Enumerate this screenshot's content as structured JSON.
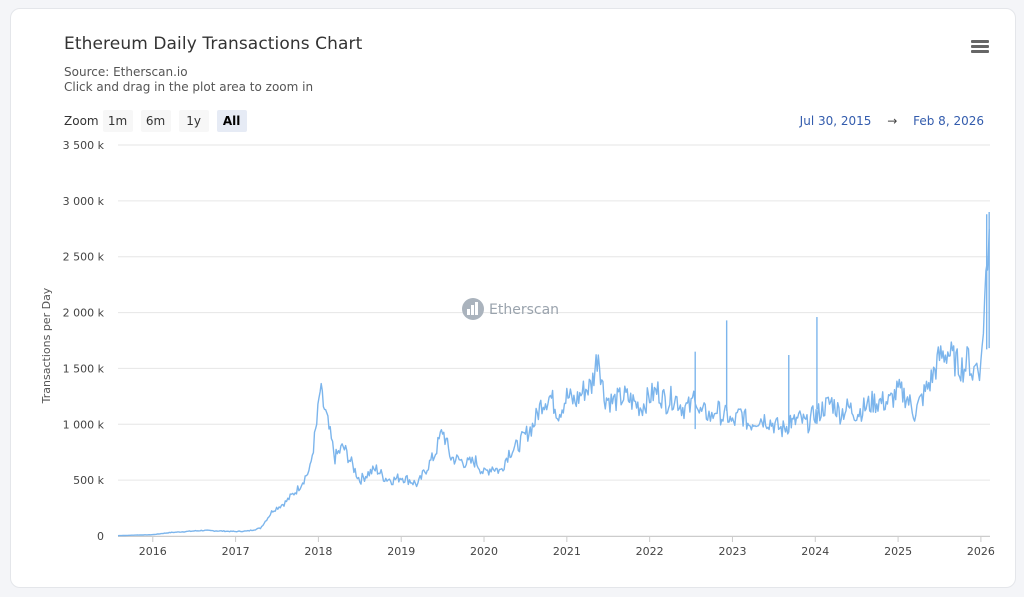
{
  "header": {
    "title": "Ethereum Daily Transactions Chart",
    "source": "Source: Etherscan.io",
    "hint": "Click and drag in the plot area to zoom in"
  },
  "zoom": {
    "label": "Zoom",
    "buttons": [
      "1m",
      "6m",
      "1y",
      "All"
    ],
    "active": "All"
  },
  "range": {
    "from": "Jul 30, 2015",
    "arrow": "→",
    "to": "Feb 8, 2026"
  },
  "watermark": "Etherscan",
  "colors": {
    "line": "#7cb5ec",
    "grid": "#e6e6e6",
    "range_text": "#335cad"
  },
  "chart_data": {
    "type": "line",
    "title": "Ethereum Daily Transactions Chart",
    "ylabel": "Transactions per Day",
    "xlabel": "",
    "ylim": [
      0,
      3500000
    ],
    "xlim": [
      2015.58,
      2026.11
    ],
    "y_ticks": [
      0,
      500000,
      1000000,
      1500000,
      2000000,
      2500000,
      3000000,
      3500000
    ],
    "y_tick_labels": [
      "0",
      "500 k",
      "1 000 k",
      "1 500 k",
      "2 000 k",
      "2 500 k",
      "3 000 k",
      "3 500 k"
    ],
    "x_ticks": [
      2016,
      2017,
      2018,
      2019,
      2020,
      2021,
      2022,
      2023,
      2024,
      2025,
      2026
    ],
    "x_tick_labels": [
      "2016",
      "2017",
      "2018",
      "2019",
      "2020",
      "2021",
      "2022",
      "2023",
      "2024",
      "2025",
      "2026"
    ],
    "series": [
      {
        "name": "Transactions per Day",
        "x": [
          2015.58,
          2015.8,
          2016.0,
          2016.2,
          2016.4,
          2016.6,
          2016.8,
          2017.0,
          2017.15,
          2017.3,
          2017.45,
          2017.6,
          2017.75,
          2017.9,
          2017.98,
          2018.02,
          2018.1,
          2018.2,
          2018.3,
          2018.4,
          2018.5,
          2018.6,
          2018.7,
          2018.8,
          2018.9,
          2019.0,
          2019.1,
          2019.2,
          2019.3,
          2019.4,
          2019.5,
          2019.6,
          2019.7,
          2019.8,
          2019.9,
          2020.0,
          2020.1,
          2020.2,
          2020.3,
          2020.4,
          2020.5,
          2020.6,
          2020.7,
          2020.8,
          2020.9,
          2021.0,
          2021.1,
          2021.2,
          2021.3,
          2021.38,
          2021.45,
          2021.55,
          2021.7,
          2021.8,
          2021.9,
          2022.0,
          2022.1,
          2022.2,
          2022.3,
          2022.4,
          2022.5,
          2022.55,
          2022.6,
          2022.7,
          2022.75,
          2022.8,
          2022.9,
          2022.93,
          2022.96,
          2023.0,
          2023.1,
          2023.2,
          2023.3,
          2023.4,
          2023.5,
          2023.6,
          2023.68,
          2023.7,
          2023.72,
          2023.8,
          2023.9,
          2024.0,
          2024.02,
          2024.04,
          2024.1,
          2024.2,
          2024.3,
          2024.4,
          2024.5,
          2024.6,
          2024.7,
          2024.8,
          2024.9,
          2025.0,
          2025.1,
          2025.2,
          2025.3,
          2025.4,
          2025.5,
          2025.6,
          2025.7,
          2025.8,
          2025.85,
          2025.9,
          2025.95,
          2026.0,
          2026.03,
          2026.06,
          2026.08,
          2026.1
        ],
        "values": [
          3000,
          8000,
          12000,
          30000,
          40000,
          50000,
          45000,
          40000,
          45000,
          70000,
          230000,
          300000,
          420000,
          600000,
          1000000,
          1300000,
          1050000,
          700000,
          800000,
          650000,
          500000,
          560000,
          600000,
          520000,
          500000,
          530000,
          500000,
          460000,
          600000,
          720000,
          950000,
          700000,
          680000,
          650000,
          670000,
          560000,
          620000,
          580000,
          750000,
          800000,
          900000,
          1000000,
          1200000,
          1250000,
          1100000,
          1250000,
          1200000,
          1300000,
          1350000,
          1650000,
          1250000,
          1200000,
          1250000,
          1200000,
          1150000,
          1250000,
          1300000,
          1200000,
          1250000,
          1150000,
          1150000,
          1300000,
          1100000,
          1100000,
          1050000,
          1150000,
          1050000,
          1100000,
          1050000,
          1000000,
          1100000,
          1000000,
          1050000,
          1050000,
          1000000,
          950000,
          1000000,
          1050000,
          1000000,
          1050000,
          1000000,
          1100000,
          1050000,
          1100000,
          1150000,
          1200000,
          1100000,
          1150000,
          1100000,
          1150000,
          1200000,
          1200000,
          1200000,
          1300000,
          1250000,
          1100000,
          1250000,
          1400000,
          1600000,
          1650000,
          1550000,
          1500000,
          1600000,
          1450000,
          1550000,
          1500000,
          1900000,
          2300000,
          2500000,
          2750000
        ]
      }
    ],
    "spikes": [
      {
        "x": 2022.55,
        "y": 1650000
      },
      {
        "x": 2022.93,
        "y": 1930000
      },
      {
        "x": 2023.68,
        "y": 1620000
      },
      {
        "x": 2024.02,
        "y": 1960000
      },
      {
        "x": 2026.07,
        "y": 2880000
      },
      {
        "x": 2026.1,
        "y": 2900000
      }
    ]
  }
}
